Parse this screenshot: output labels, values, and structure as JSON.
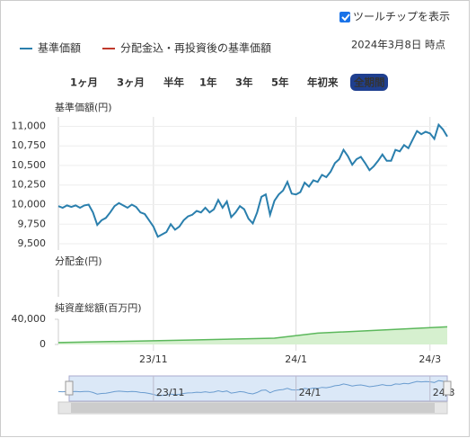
{
  "controls": {
    "tooltip": "ツールチップを表示",
    "as_of": "2024年3月8日 時点",
    "legend": [
      {
        "name": "基準価額",
        "color": "#2a7fad"
      },
      {
        "name": "分配金込・再投資後の基準価額",
        "color": "#c0392b"
      }
    ],
    "ranges": [
      "1ヶ月",
      "3ヶ月",
      "半年",
      "1年",
      "3年",
      "5年",
      "年初来",
      "全期間"
    ],
    "enabled": [
      true,
      true,
      false,
      false,
      false,
      false,
      true,
      true
    ]
  },
  "chart_data": [
    {
      "type": "line",
      "title": "基準価額(円)",
      "color": "#2a7fad",
      "xlim": [
        0,
        90
      ],
      "xticks": [
        {
          "value": 22,
          "label": "23/11"
        },
        {
          "value": 55,
          "label": "24/1"
        },
        {
          "value": 86,
          "label": "24/3"
        }
      ],
      "ylim": [
        9420,
        11120
      ],
      "yticks": [
        {
          "value": 9500,
          "label": "9,500"
        },
        {
          "value": 9750,
          "label": "9,750"
        },
        {
          "value": 10000,
          "label": "10,000"
        },
        {
          "value": 10250,
          "label": "10,250"
        },
        {
          "value": 10500,
          "label": "10,500"
        },
        {
          "value": 10750,
          "label": "10,750"
        },
        {
          "value": 11000,
          "label": "11,000"
        }
      ],
      "values": [
        9980,
        9960,
        9990,
        9970,
        9990,
        9960,
        9990,
        10000,
        9900,
        9740,
        9800,
        9830,
        9900,
        9980,
        10020,
        9990,
        9960,
        10000,
        9970,
        9900,
        9880,
        9800,
        9720,
        9590,
        9620,
        9650,
        9750,
        9680,
        9720,
        9800,
        9850,
        9870,
        9920,
        9900,
        9960,
        9900,
        9940,
        10060,
        9960,
        10040,
        9840,
        9900,
        9980,
        9940,
        9820,
        9760,
        9900,
        10100,
        10130,
        9870,
        10050,
        10130,
        10180,
        10290,
        10140,
        10130,
        10160,
        10280,
        10230,
        10310,
        10290,
        10380,
        10350,
        10420,
        10530,
        10580,
        10700,
        10620,
        10510,
        10580,
        10610,
        10530,
        10440,
        10490,
        10560,
        10640,
        10560,
        10560,
        10700,
        10680,
        10760,
        10720,
        10830,
        10940,
        10900,
        10930,
        10910,
        10840,
        11020,
        10960,
        10870
      ]
    },
    {
      "type": "empty",
      "title": "分配金(円)"
    },
    {
      "type": "area",
      "title": "純資産総額(百万円)",
      "color": "#5cb85c",
      "xlim": [
        0,
        90
      ],
      "ylim": [
        0,
        40000
      ],
      "yticks": [
        0,
        {
          "value": 40000,
          "label": "40,000"
        }
      ],
      "x": [
        0,
        30,
        50,
        60,
        90
      ],
      "values": [
        3000,
        7000,
        10000,
        18000,
        28000
      ]
    }
  ]
}
